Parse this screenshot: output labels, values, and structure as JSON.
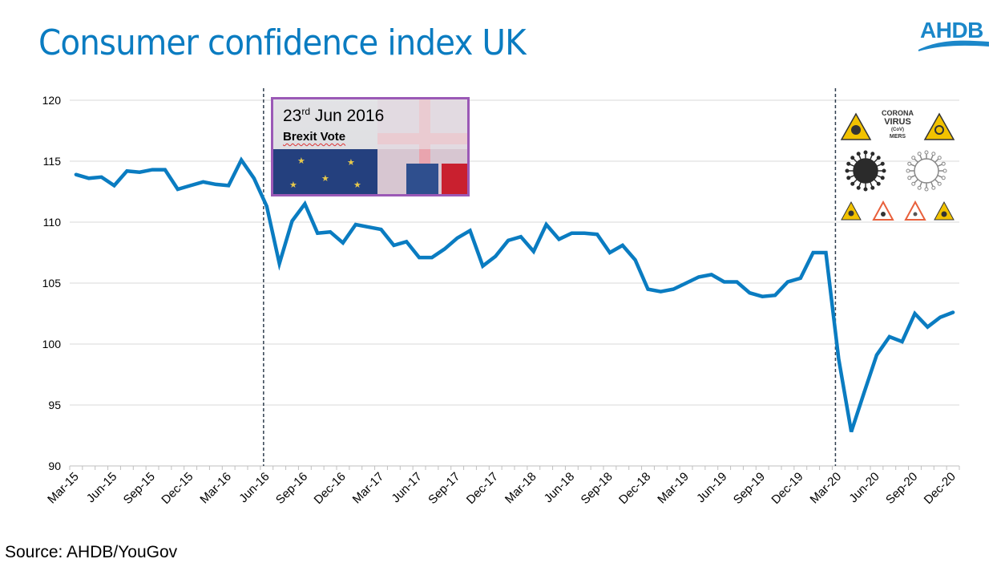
{
  "header": {
    "title": "Consumer confidence index UK",
    "logo_text": "AHDB"
  },
  "colors": {
    "title": "#0a7cc1",
    "line": "#0a7cc1",
    "grid": "#d9d9d9",
    "marker_line": "#2f3e4e",
    "annotation_border": "#9b59b6"
  },
  "annotations": {
    "brexit": {
      "date_day": "23",
      "date_suffix": "rd",
      "date_rest": " Jun 2016",
      "label": "Brexit Vote",
      "at": "Jun-16"
    },
    "covid": {
      "text_lines": [
        "CORONA",
        "VIRUS",
        "(CoV)",
        "MERS"
      ],
      "at": "Mar-20"
    }
  },
  "footer": {
    "source": "Source: AHDB/YouGov"
  },
  "chart_data": {
    "type": "line",
    "title": "Consumer confidence index UK",
    "xlabel": "",
    "ylabel": "",
    "ylim": [
      90,
      120
    ],
    "yticks": [
      90,
      95,
      100,
      105,
      110,
      115,
      120
    ],
    "grid": true,
    "legend": "none",
    "xtick_labels": [
      "Mar-15",
      "Jun-15",
      "Sep-15",
      "Dec-15",
      "Mar-16",
      "Jun-16",
      "Sep-16",
      "Dec-16",
      "Mar-17",
      "Jun-17",
      "Sep-17",
      "Dec-17",
      "Mar-18",
      "Jun-18",
      "Sep-18",
      "Dec-18",
      "Mar-19",
      "Jun-19",
      "Sep-19",
      "Dec-19",
      "Mar-20",
      "Jun-20",
      "Sep-20",
      "Dec-20"
    ],
    "x": [
      "Mar-15",
      "Apr-15",
      "May-15",
      "Jun-15",
      "Jul-15",
      "Aug-15",
      "Sep-15",
      "Oct-15",
      "Nov-15",
      "Dec-15",
      "Jan-16",
      "Feb-16",
      "Mar-16",
      "Apr-16",
      "May-16",
      "Jun-16",
      "Jul-16",
      "Aug-16",
      "Sep-16",
      "Oct-16",
      "Nov-16",
      "Dec-16",
      "Jan-17",
      "Feb-17",
      "Mar-17",
      "Apr-17",
      "May-17",
      "Jun-17",
      "Jul-17",
      "Aug-17",
      "Sep-17",
      "Oct-17",
      "Nov-17",
      "Dec-17",
      "Jan-18",
      "Feb-18",
      "Mar-18",
      "Apr-18",
      "May-18",
      "Jun-18",
      "Jul-18",
      "Aug-18",
      "Sep-18",
      "Oct-18",
      "Nov-18",
      "Dec-18",
      "Jan-19",
      "Feb-19",
      "Mar-19",
      "Apr-19",
      "May-19",
      "Jun-19",
      "Jul-19",
      "Aug-19",
      "Sep-19",
      "Oct-19",
      "Nov-19",
      "Dec-19",
      "Jan-20",
      "Feb-20",
      "Mar-20",
      "Apr-20",
      "May-20",
      "Jun-20",
      "Jul-20",
      "Aug-20",
      "Sep-20",
      "Oct-20",
      "Nov-20",
      "Dec-20"
    ],
    "series": [
      {
        "name": "Consumer confidence index",
        "values": [
          113.9,
          113.6,
          113.7,
          113.0,
          114.2,
          114.1,
          114.3,
          114.3,
          112.7,
          113.0,
          113.3,
          113.1,
          113.0,
          115.1,
          113.6,
          111.3,
          106.6,
          110.1,
          111.5,
          109.1,
          109.2,
          108.3,
          109.8,
          109.6,
          109.4,
          108.1,
          108.4,
          107.1,
          107.1,
          107.8,
          108.7,
          109.3,
          106.4,
          107.2,
          108.5,
          108.8,
          107.6,
          109.8,
          108.6,
          109.1,
          109.1,
          109.0,
          107.5,
          108.1,
          106.9,
          104.5,
          104.3,
          104.5,
          105.0,
          105.5,
          105.7,
          105.1,
          105.1,
          104.2,
          103.9,
          104.0,
          105.1,
          105.4,
          107.5,
          107.5,
          98.8,
          92.8,
          96.0,
          99.1,
          100.6,
          100.2,
          102.5,
          101.4,
          102.2,
          102.6
        ]
      }
    ],
    "vertical_markers": [
      {
        "at": "Jun-16",
        "label": "Brexit Vote"
      },
      {
        "at": "Mar-20",
        "label": "COVID-19"
      }
    ]
  }
}
